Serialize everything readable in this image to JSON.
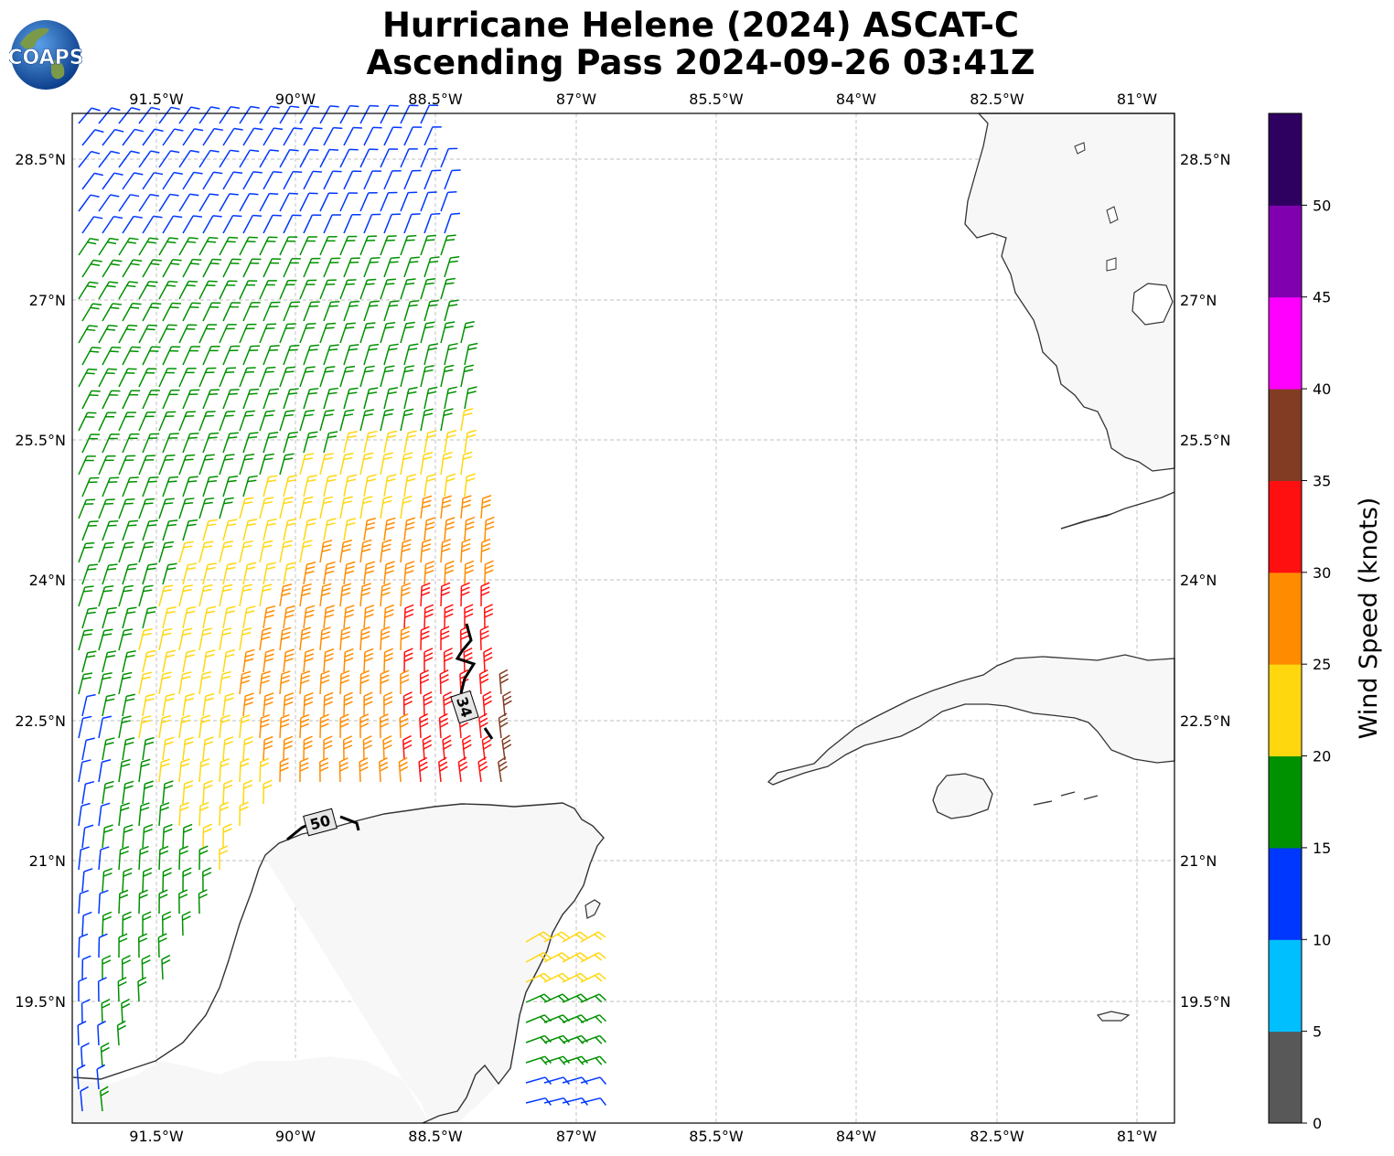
{
  "title": {
    "line1": "Hurricane Helene (2024) ASCAT-C",
    "line2": "Ascending Pass 2024-09-26 03:41Z"
  },
  "logo_text": "COAPS",
  "map": {
    "lon_ticks": [
      "91.5°W",
      "90°W",
      "88.5°W",
      "87°W",
      "85.5°W",
      "84°W",
      "82.5°W",
      "81°W"
    ],
    "lat_ticks": [
      "28.5°N",
      "27°N",
      "25.5°N",
      "24°N",
      "22.5°N",
      "21°N",
      "19.5°N"
    ],
    "contour_labels": [
      "34",
      "50"
    ]
  },
  "colorbar": {
    "label": "Wind Speed (knots)",
    "ticks": [
      "0",
      "5",
      "10",
      "15",
      "20",
      "25",
      "30",
      "35",
      "40",
      "45",
      "50"
    ],
    "colors": [
      "#585858",
      "#00bfff",
      "#0037ff",
      "#009100",
      "#ffd70f",
      "#ff8c00",
      "#ff1010",
      "#823c23",
      "#ff00ff",
      "#8000b0",
      "#2e0060"
    ]
  }
}
